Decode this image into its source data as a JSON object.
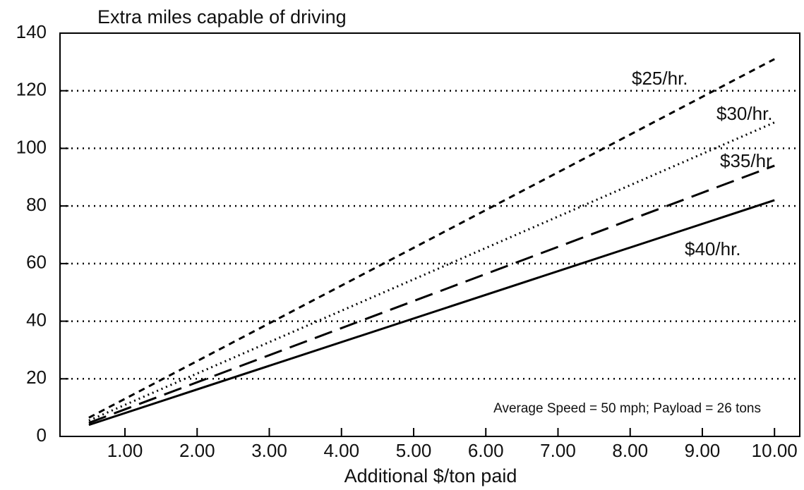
{
  "chart_data": {
    "type": "line",
    "title": "Extra miles capable of driving",
    "x_label": "Additional $/ton paid",
    "annotation": "Average Speed = 50 mph; Payload = 26 tons",
    "x": [
      0.5,
      10
    ],
    "series": [
      {
        "name": "$25/hr.",
        "color": "#000000",
        "style": "short-dash",
        "values": [
          6.5,
          131
        ]
      },
      {
        "name": "$30/hr.",
        "color": "#000000",
        "style": "dotted",
        "values": [
          5.5,
          109
        ]
      },
      {
        "name": "$35/hr.",
        "color": "#000000",
        "style": "long-dash",
        "values": [
          4.7,
          94
        ]
      },
      {
        "name": "$40/hr.",
        "color": "#000000",
        "style": "solid",
        "values": [
          4,
          82
        ]
      }
    ],
    "xlim": [
      0.1,
      10.35
    ],
    "xticks": [
      {
        "value": 1,
        "label": "1.00"
      },
      {
        "value": 2,
        "label": "2.00"
      },
      {
        "value": 3,
        "label": "3.00"
      },
      {
        "value": 4,
        "label": "4.00"
      },
      {
        "value": 5,
        "label": "5.00"
      },
      {
        "value": 6,
        "label": "6.00"
      },
      {
        "value": 7,
        "label": "7.00"
      },
      {
        "value": 8,
        "label": "8.00"
      },
      {
        "value": 9,
        "label": "9.00"
      },
      {
        "value": 10,
        "label": "10.00"
      }
    ],
    "ylim": [
      0,
      140
    ],
    "yticks": [
      0,
      20,
      40,
      60,
      80,
      100,
      120,
      140
    ],
    "grid": true
  }
}
